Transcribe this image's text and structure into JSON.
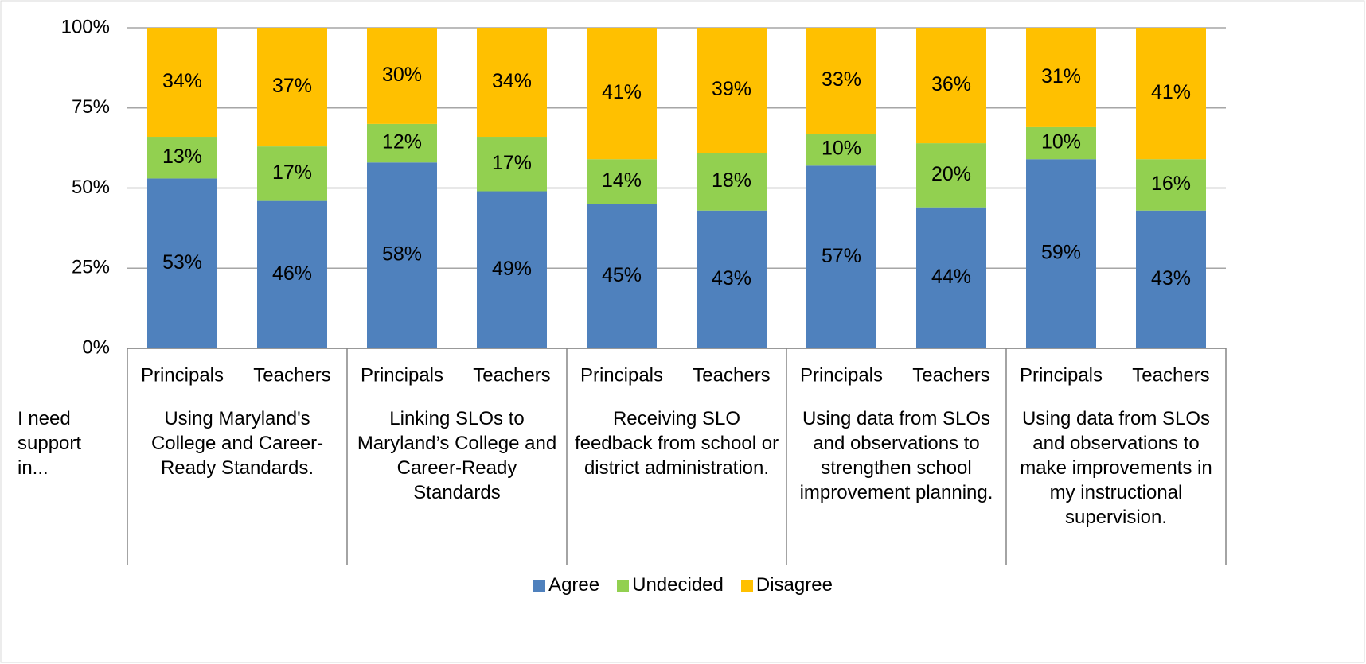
{
  "chart_data": {
    "type": "stacked_bar",
    "x_label": "I need support in...",
    "categories": [
      "Principals",
      "Teachers",
      "Principals",
      "Teachers",
      "Principals",
      "Teachers",
      "Principals",
      "Teachers",
      "Principals",
      "Teachers"
    ],
    "groups": [
      "Using Maryland's College and Career-Ready Standards.",
      "Linking SLOs to Maryland’s College and Career-Ready Standards",
      "Receiving SLO feedback from school or district administration.",
      "Using data from SLOs and observations to strengthen school improvement planning.",
      "Using data from SLOs and observations to make improvements in my instructional supervision."
    ],
    "series": [
      {
        "name": "Agree",
        "color": "#4f81bd",
        "values": [
          53,
          46,
          58,
          49,
          45,
          43,
          57,
          44,
          59,
          43
        ],
        "value_labels": [
          "53%",
          "46%",
          "58%",
          "49%",
          "45%",
          "43%",
          "57%",
          "44%",
          "59%",
          "43%"
        ]
      },
      {
        "name": "Undecided",
        "color": "#92d050",
        "values": [
          13,
          17,
          12,
          17,
          14,
          18,
          10,
          20,
          10,
          16
        ],
        "value_labels": [
          "13%",
          "17%",
          "12%",
          "17%",
          "14%",
          "18%",
          "10%",
          "20%",
          "10%",
          "16%"
        ]
      },
      {
        "name": "Disagree",
        "color": "#ffc000",
        "values": [
          34,
          37,
          30,
          34,
          41,
          39,
          33,
          36,
          31,
          41
        ],
        "value_labels": [
          "34%",
          "37%",
          "30%",
          "34%",
          "41%",
          "39%",
          "33%",
          "36%",
          "31%",
          "41%"
        ]
      }
    ],
    "ylim": [
      0,
      100
    ],
    "yticks": [
      {
        "value": 0,
        "label": "0%"
      },
      {
        "value": 25,
        "label": "25%"
      },
      {
        "value": 50,
        "label": "50%"
      },
      {
        "value": 75,
        "label": "75%"
      },
      {
        "value": 100,
        "label": "100%"
      }
    ],
    "grid": true,
    "legend": "bottom"
  }
}
